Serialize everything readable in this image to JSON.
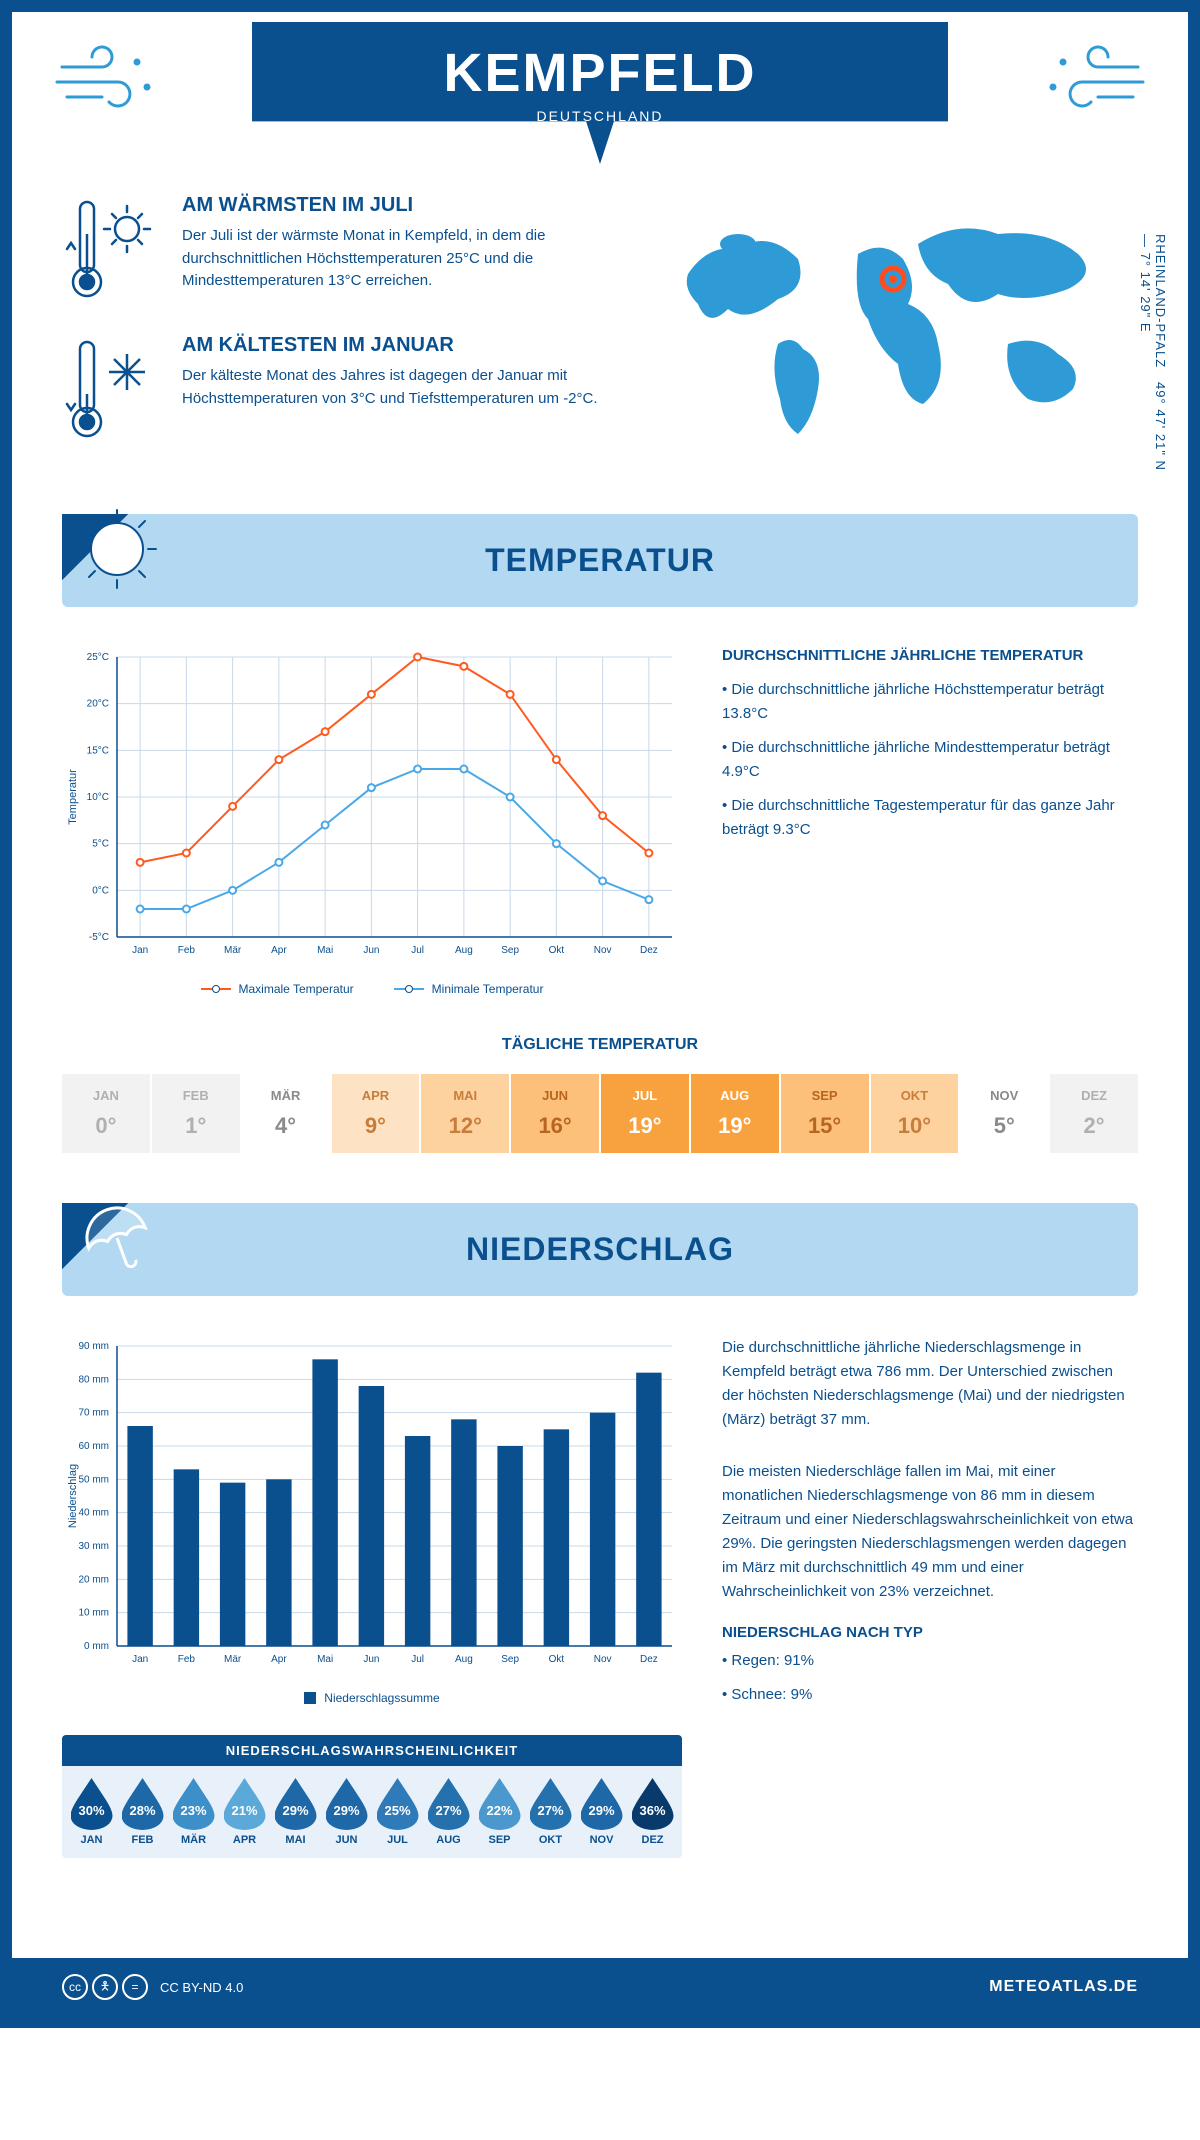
{
  "header": {
    "title": "KEMPFELD",
    "subtitle": "DEUTSCHLAND"
  },
  "coords": "49° 47' 21\" N — 7° 14' 29\" E",
  "region": "RHEINLAND-PFALZ",
  "facts": {
    "warm": {
      "title": "AM WÄRMSTEN IM JULI",
      "text": "Der Juli ist der wärmste Monat in Kempfeld, in dem die durchschnittlichen Höchsttemperaturen 25°C und die Mindesttemperaturen 13°C erreichen."
    },
    "cold": {
      "title": "AM KÄLTESTEN IM JANUAR",
      "text": "Der kälteste Monat des Jahres ist dagegen der Januar mit Höchsttemperaturen von 3°C und Tiefsttemperaturen um -2°C."
    }
  },
  "sections": {
    "temp": "TEMPERATUR",
    "prec": "NIEDERSCHLAG"
  },
  "temp_chart": {
    "type": "line",
    "months": [
      "Jan",
      "Feb",
      "Mär",
      "Apr",
      "Mai",
      "Jun",
      "Jul",
      "Aug",
      "Sep",
      "Okt",
      "Nov",
      "Dez"
    ],
    "max_series": {
      "label": "Maximale Temperatur",
      "color": "#ff5a1f",
      "values": [
        3,
        4,
        9,
        14,
        17,
        21,
        25,
        24,
        21,
        14,
        8,
        4
      ]
    },
    "min_series": {
      "label": "Minimale Temperatur",
      "color": "#4aa8e8",
      "values": [
        -2,
        -2,
        0,
        3,
        7,
        11,
        13,
        13,
        10,
        5,
        1,
        -1
      ]
    },
    "ylim": [
      -5,
      25
    ],
    "ytick_step": 5,
    "ylabel": "Temperatur",
    "grid_color": "#c8d8e8",
    "axis_color": "#0a4f8e"
  },
  "temp_facts": {
    "heading": "DURCHSCHNITTLICHE JÄHRLICHE TEMPERATUR",
    "b1": "• Die durchschnittliche jährliche Höchsttemperatur beträgt 13.8°C",
    "b2": "• Die durchschnittliche jährliche Mindesttemperatur beträgt 4.9°C",
    "b3": "• Die durchschnittliche Tagestemperatur für das ganze Jahr beträgt 9.3°C"
  },
  "daily_temp": {
    "heading": "TÄGLICHE TEMPERATUR",
    "months": [
      "JAN",
      "FEB",
      "MÄR",
      "APR",
      "MAI",
      "JUN",
      "JUL",
      "AUG",
      "SEP",
      "OKT",
      "NOV",
      "DEZ"
    ],
    "values": [
      "0°",
      "1°",
      "4°",
      "9°",
      "12°",
      "16°",
      "19°",
      "19°",
      "15°",
      "10°",
      "5°",
      "2°"
    ],
    "bg_colors": [
      "#f2f2f2",
      "#f2f2f2",
      "#ffffff",
      "#fde3c4",
      "#fdd29e",
      "#fcc07a",
      "#f7a23e",
      "#f7a23e",
      "#fcc07a",
      "#fdd29e",
      "#ffffff",
      "#f2f2f2"
    ],
    "fg_colors": [
      "#b0b0b0",
      "#b0b0b0",
      "#8a8a8a",
      "#c87d3a",
      "#c87d3a",
      "#b8651f",
      "#ffffff",
      "#ffffff",
      "#b8651f",
      "#c87d3a",
      "#8a8a8a",
      "#b0b0b0"
    ]
  },
  "prec_chart": {
    "type": "bar",
    "months": [
      "Jan",
      "Feb",
      "Mär",
      "Apr",
      "Mai",
      "Jun",
      "Jul",
      "Aug",
      "Sep",
      "Okt",
      "Nov",
      "Dez"
    ],
    "values": [
      66,
      53,
      49,
      50,
      86,
      78,
      63,
      68,
      60,
      65,
      70,
      82
    ],
    "bar_color": "#0a4f8e",
    "ylim": [
      0,
      90
    ],
    "ytick_step": 10,
    "ylabel": "Niederschlag",
    "legend": "Niederschlagssumme",
    "grid_color": "#c8d8e8"
  },
  "prec_text": {
    "p1": "Die durchschnittliche jährliche Niederschlagsmenge in Kempfeld beträgt etwa 786 mm. Der Unterschied zwischen der höchsten Niederschlagsmenge (Mai) und der niedrigsten (März) beträgt 37 mm.",
    "p2": "Die meisten Niederschläge fallen im Mai, mit einer monatlichen Niederschlagsmenge von 86 mm in diesem Zeitraum und einer Niederschlagswahrscheinlichkeit von etwa 29%. Die geringsten Niederschlagsmengen werden dagegen im März mit durchschnittlich 49 mm und einer Wahrscheinlichkeit von 23% verzeichnet.",
    "type_heading": "NIEDERSCHLAG NACH TYP",
    "type1": "• Regen: 91%",
    "type2": "• Schnee: 9%"
  },
  "prob": {
    "heading": "NIEDERSCHLAGSWAHRSCHEINLICHKEIT",
    "months": [
      "JAN",
      "FEB",
      "MÄR",
      "APR",
      "MAI",
      "JUN",
      "JUL",
      "AUG",
      "SEP",
      "OKT",
      "NOV",
      "DEZ"
    ],
    "values": [
      "30%",
      "28%",
      "23%",
      "21%",
      "29%",
      "29%",
      "25%",
      "27%",
      "22%",
      "27%",
      "29%",
      "36%"
    ],
    "colors": [
      "#0a4f8e",
      "#1e68a8",
      "#3d8fc9",
      "#5ba9d8",
      "#1e68a8",
      "#1e68a8",
      "#2f7ab8",
      "#2471ad",
      "#4a98ce",
      "#2471ad",
      "#1e68a8",
      "#083a6b"
    ]
  },
  "footer": {
    "license": "CC BY-ND 4.0",
    "site": "METEOATLAS.DE"
  },
  "colors": {
    "primary": "#0a4f8e",
    "light": "#b3d9f2",
    "accent": "#2e9bd6"
  }
}
